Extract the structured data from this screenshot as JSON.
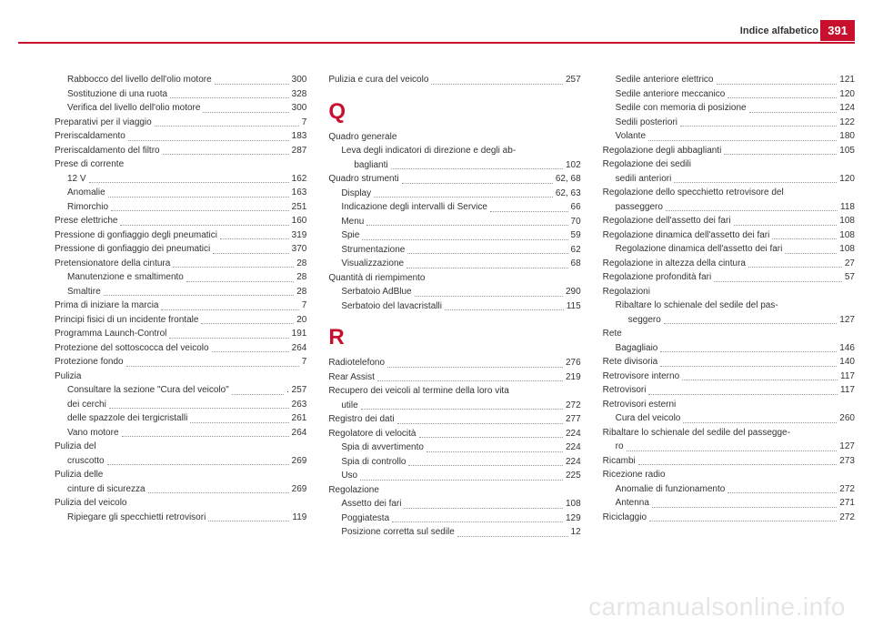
{
  "header": {
    "title": "Indice alfabetico",
    "page_badge": "391"
  },
  "watermark": "carmanualsonline.info",
  "columns": [
    [
      {
        "t": "sub",
        "label": "Rabbocco del livello dell'olio motore",
        "pg": "300"
      },
      {
        "t": "sub",
        "label": "Sostituzione di una ruota",
        "pg": "328"
      },
      {
        "t": "sub",
        "label": "Verifica del livello dell'olio motore",
        "pg": "300"
      },
      {
        "t": "e",
        "label": "Preparativi per il viaggio",
        "pg": "7"
      },
      {
        "t": "e",
        "label": "Preriscaldamento",
        "pg": "183"
      },
      {
        "t": "e",
        "label": "Preriscaldamento del filtro",
        "pg": "287"
      },
      {
        "t": "h",
        "label": "Prese di corrente"
      },
      {
        "t": "sub",
        "label": "12 V",
        "pg": "162"
      },
      {
        "t": "sub",
        "label": "Anomalie",
        "pg": "163"
      },
      {
        "t": "sub",
        "label": "Rimorchio",
        "pg": "251"
      },
      {
        "t": "e",
        "label": "Prese elettriche",
        "pg": "160"
      },
      {
        "t": "e",
        "label": "Pressione di gonfiaggio degli pneumatici",
        "pg": "319"
      },
      {
        "t": "e",
        "label": "Pressione di gonfiaggio dei pneumatici",
        "pg": "370"
      },
      {
        "t": "e",
        "label": "Pretensionatore della cintura",
        "pg": "28"
      },
      {
        "t": "sub",
        "label": "Manutenzione e smaltimento",
        "pg": "28"
      },
      {
        "t": "sub",
        "label": "Smaltire",
        "pg": "28"
      },
      {
        "t": "e",
        "label": "Prima di iniziare la marcia",
        "pg": "7"
      },
      {
        "t": "e",
        "label": "Principi fisici di un incidente frontale",
        "pg": "20"
      },
      {
        "t": "e",
        "label": "Programma Launch-Control",
        "pg": "191"
      },
      {
        "t": "e",
        "label": "Protezione del sottoscocca del veicolo",
        "pg": "264"
      },
      {
        "t": "e",
        "label": "Protezione fondo",
        "pg": "7"
      },
      {
        "t": "h",
        "label": "Pulizia"
      },
      {
        "t": "sub",
        "label": "Consultare la sezione \"Cura del veicolo\"",
        "pg": ". 257"
      },
      {
        "t": "sub",
        "label": "dei cerchi",
        "pg": "263"
      },
      {
        "t": "sub",
        "label": "delle spazzole dei tergicristalli",
        "pg": "261"
      },
      {
        "t": "sub",
        "label": "Vano motore",
        "pg": "264"
      },
      {
        "t": "h",
        "label": "Pulizia del"
      },
      {
        "t": "sub",
        "label": "cruscotto",
        "pg": "269"
      },
      {
        "t": "h",
        "label": "Pulizia delle"
      },
      {
        "t": "sub",
        "label": "cinture di sicurezza",
        "pg": "269"
      },
      {
        "t": "h",
        "label": "Pulizia del veicolo"
      },
      {
        "t": "sub",
        "label": "Ripiegare gli specchietti retrovisori",
        "pg": "119"
      }
    ],
    [
      {
        "t": "e",
        "label": "Pulizia e cura del veicolo",
        "pg": "257"
      },
      {
        "t": "letter",
        "label": "Q"
      },
      {
        "t": "h",
        "label": "Quadro generale"
      },
      {
        "t": "sub",
        "label": "Leva degli indicatori di direzione e degli ab-"
      },
      {
        "t": "subsub",
        "label": "baglianti",
        "pg": "102"
      },
      {
        "t": "e",
        "label": "Quadro strumenti",
        "pg": "62, 68"
      },
      {
        "t": "sub",
        "label": "Display",
        "pg": "62, 63"
      },
      {
        "t": "sub",
        "label": "Indicazione degli intervalli di Service",
        "pg": "66"
      },
      {
        "t": "sub",
        "label": "Menu",
        "pg": "70"
      },
      {
        "t": "sub",
        "label": "Spie",
        "pg": "59"
      },
      {
        "t": "sub",
        "label": "Strumentazione",
        "pg": "62"
      },
      {
        "t": "sub",
        "label": "Visualizzazione",
        "pg": "68"
      },
      {
        "t": "h",
        "label": "Quantità di riempimento"
      },
      {
        "t": "sub",
        "label": "Serbatoio AdBlue",
        "pg": "290"
      },
      {
        "t": "sub",
        "label": "Serbatoio del lavacristalli",
        "pg": "115"
      },
      {
        "t": "letter",
        "label": "R"
      },
      {
        "t": "e",
        "label": "Radiotelefono",
        "pg": "276"
      },
      {
        "t": "e",
        "label": "Rear Assist",
        "pg": "219"
      },
      {
        "t": "h",
        "label": "Recupero dei veicoli al termine della loro vita"
      },
      {
        "t": "sub",
        "label": "utile",
        "pg": "272"
      },
      {
        "t": "e",
        "label": "Registro dei dati",
        "pg": "277"
      },
      {
        "t": "e",
        "label": "Regolatore di velocità",
        "pg": "224"
      },
      {
        "t": "sub",
        "label": "Spia di avvertimento",
        "pg": "224"
      },
      {
        "t": "sub",
        "label": "Spia di controllo",
        "pg": "224"
      },
      {
        "t": "sub",
        "label": "Uso",
        "pg": "225"
      },
      {
        "t": "h",
        "label": "Regolazione"
      },
      {
        "t": "sub",
        "label": "Assetto dei fari",
        "pg": "108"
      },
      {
        "t": "sub",
        "label": "Poggiatesta",
        "pg": "129"
      },
      {
        "t": "sub",
        "label": "Posizione corretta sul sedile",
        "pg": "12"
      }
    ],
    [
      {
        "t": "sub",
        "label": "Sedile anteriore elettrico",
        "pg": "121"
      },
      {
        "t": "sub",
        "label": "Sedile anteriore meccanico",
        "pg": "120"
      },
      {
        "t": "sub",
        "label": "Sedile con memoria di posizione",
        "pg": "124"
      },
      {
        "t": "sub",
        "label": "Sedili posteriori",
        "pg": "122"
      },
      {
        "t": "sub",
        "label": "Volante",
        "pg": "180"
      },
      {
        "t": "e",
        "label": "Regolazione degli abbaglianti",
        "pg": "105"
      },
      {
        "t": "h",
        "label": "Regolazione dei sedili"
      },
      {
        "t": "sub",
        "label": "sedili anteriori",
        "pg": "120"
      },
      {
        "t": "h",
        "label": "Regolazione dello specchietto retrovisore del"
      },
      {
        "t": "sub",
        "label": "passeggero",
        "pg": "118"
      },
      {
        "t": "e",
        "label": "Regolazione dell'assetto dei fari",
        "pg": "108"
      },
      {
        "t": "e",
        "label": "Regolazione dinamica dell'assetto dei fari",
        "pg": "108"
      },
      {
        "t": "sub",
        "label": "Regolazione dinamica dell'assetto dei fari",
        "pg": "108"
      },
      {
        "t": "e",
        "label": "Regolazione in altezza della cintura",
        "pg": "27"
      },
      {
        "t": "e",
        "label": "Regolazione profondità fari",
        "pg": "57"
      },
      {
        "t": "h",
        "label": "Regolazioni"
      },
      {
        "t": "sub",
        "label": "Ribaltare lo schienale del sedile del pas-"
      },
      {
        "t": "subsub",
        "label": "seggero",
        "pg": "127"
      },
      {
        "t": "h",
        "label": "Rete"
      },
      {
        "t": "sub",
        "label": "Bagagliaio",
        "pg": "146"
      },
      {
        "t": "e",
        "label": "Rete divisoria",
        "pg": "140"
      },
      {
        "t": "e",
        "label": "Retrovisore interno",
        "pg": "117"
      },
      {
        "t": "e",
        "label": "Retrovisori",
        "pg": "117"
      },
      {
        "t": "h",
        "label": "Retrovisori esterni"
      },
      {
        "t": "sub",
        "label": "Cura del veicolo",
        "pg": "260"
      },
      {
        "t": "h",
        "label": "Ribaltare lo schienale del sedile del passegge-"
      },
      {
        "t": "sub",
        "label": "ro",
        "pg": "127"
      },
      {
        "t": "e",
        "label": "Ricambi",
        "pg": "273"
      },
      {
        "t": "h",
        "label": "Ricezione radio"
      },
      {
        "t": "sub",
        "label": "Anomalie di funzionamento",
        "pg": "272"
      },
      {
        "t": "sub",
        "label": "Antenna",
        "pg": "271"
      },
      {
        "t": "e",
        "label": "Riciclaggio",
        "pg": "272"
      }
    ]
  ]
}
